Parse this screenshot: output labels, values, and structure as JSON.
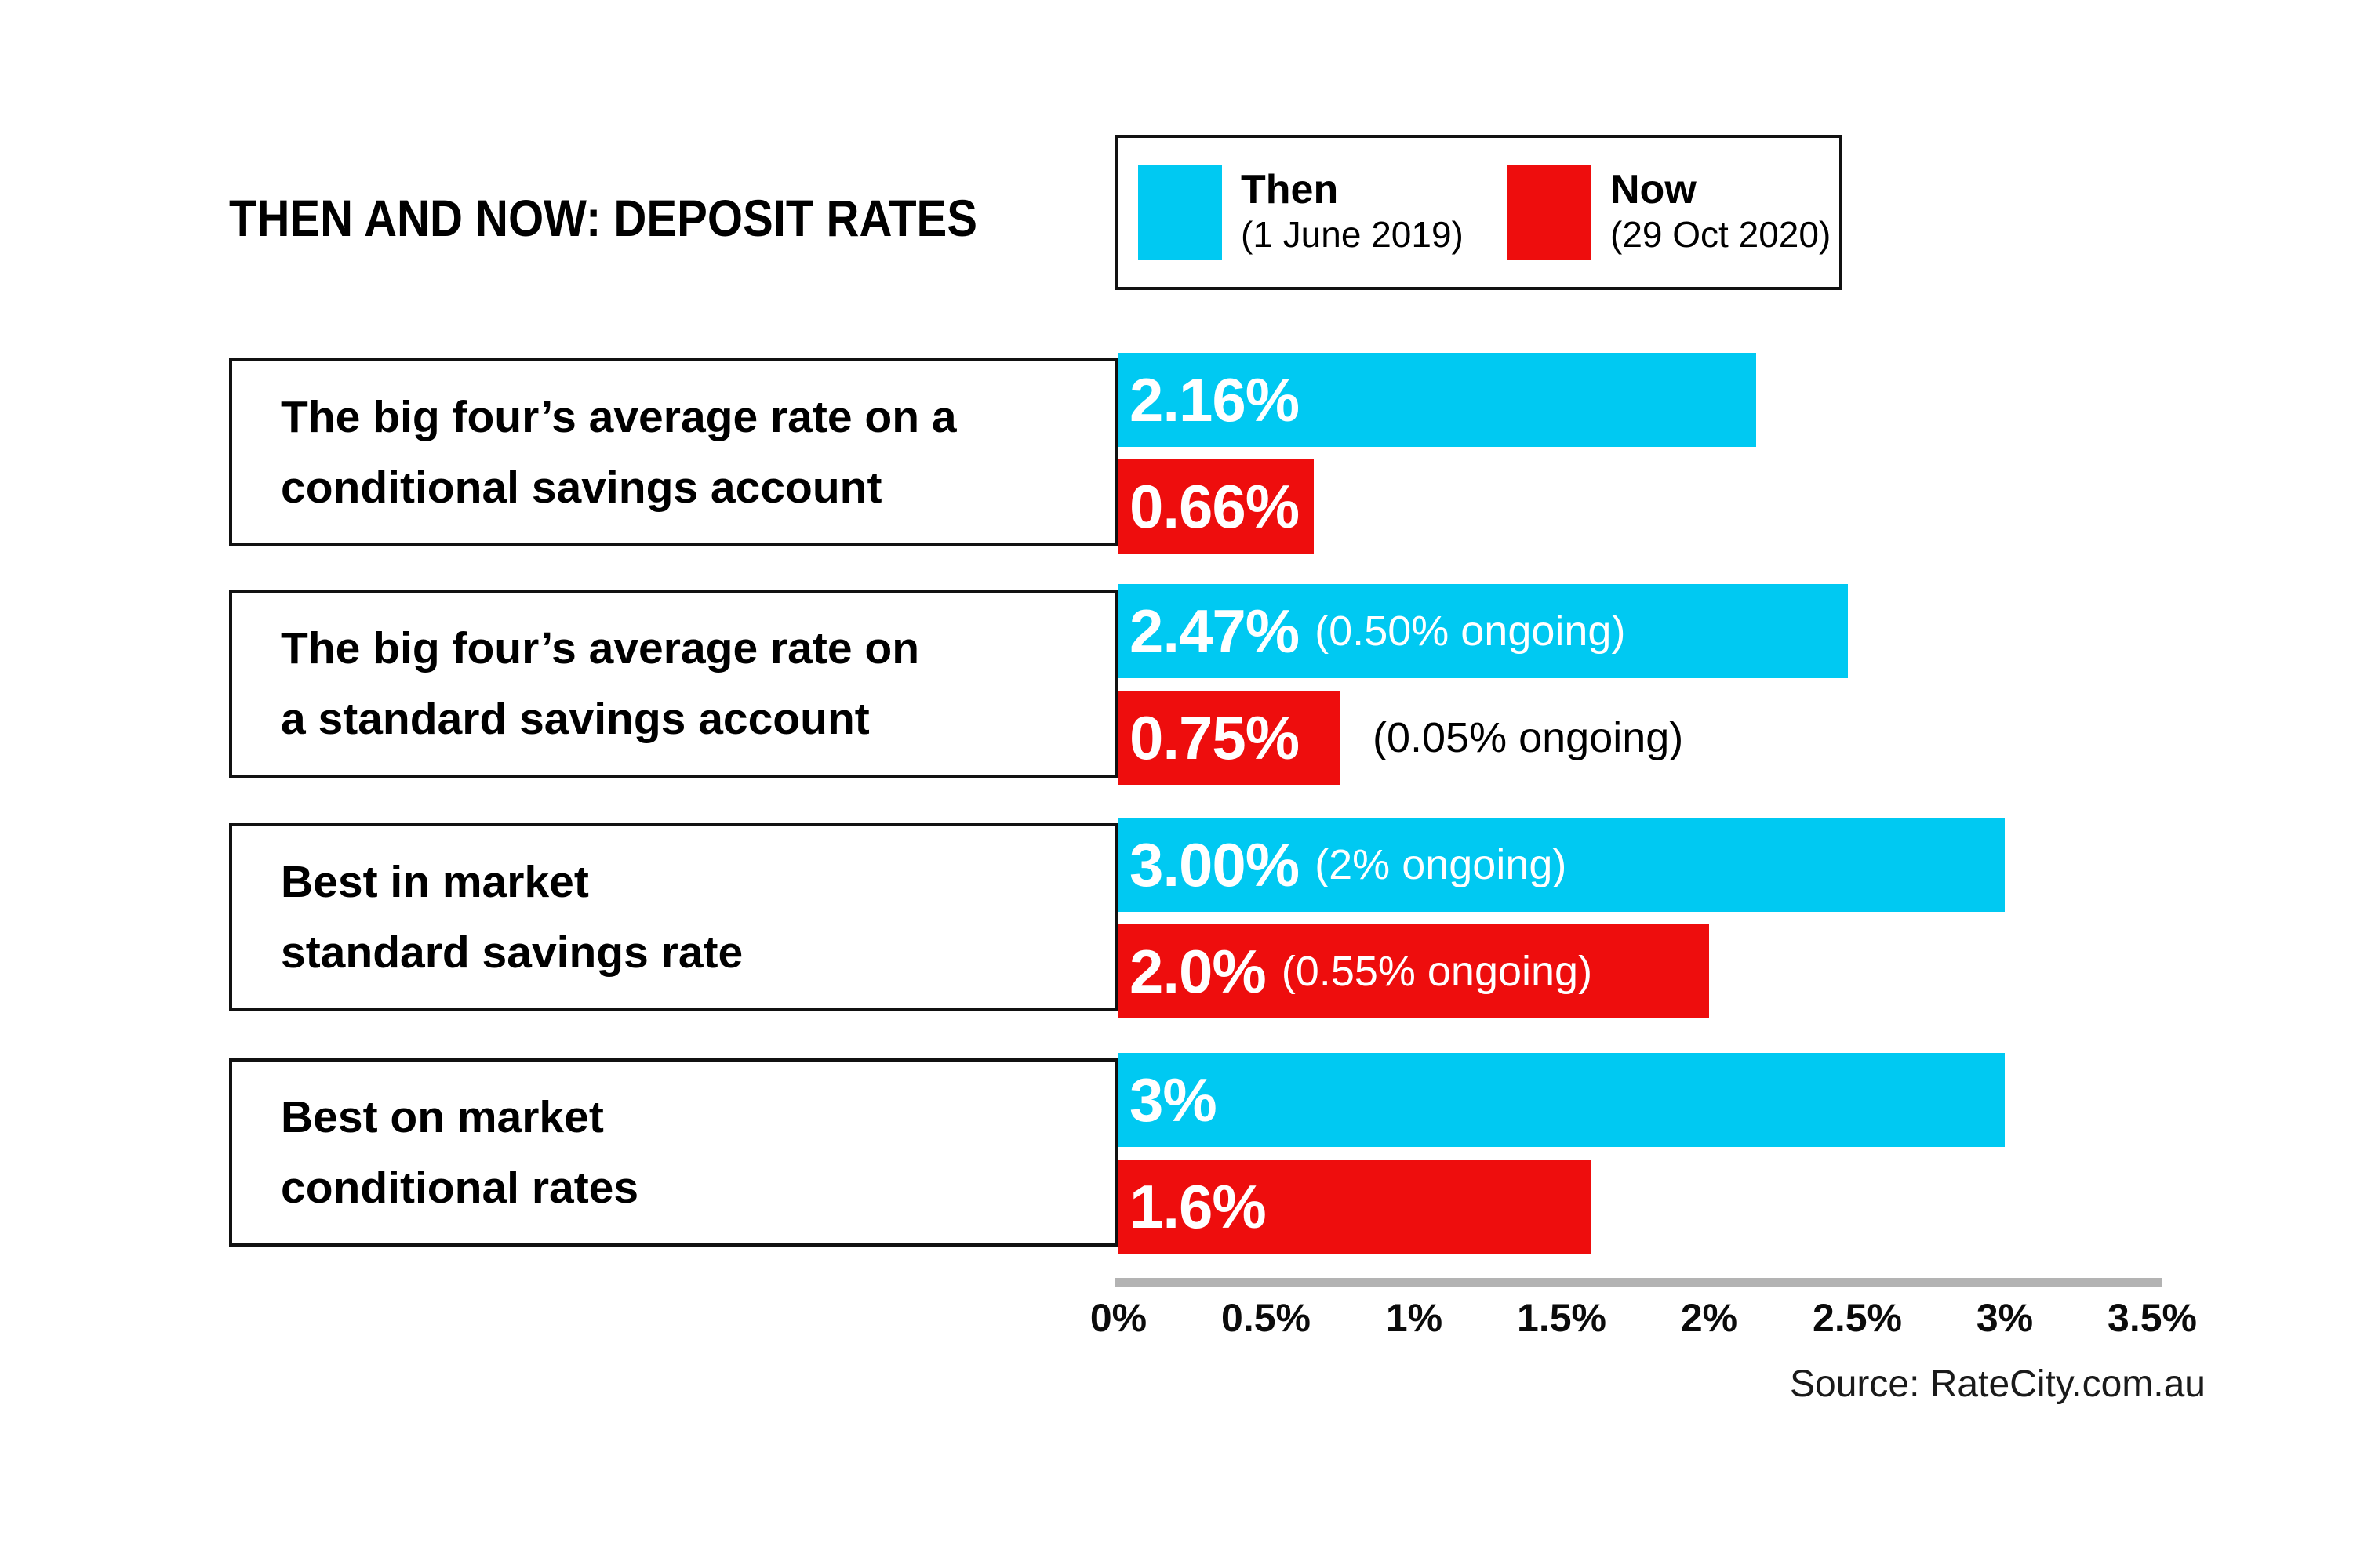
{
  "title": "THEN AND NOW: DEPOSIT RATES",
  "legend": {
    "then": {
      "label": "Then",
      "date": "(1 June 2019)",
      "color": "#00c9f2"
    },
    "now": {
      "label": "Now",
      "date": "(29 Oct 2020)",
      "color": "#ee0d0d"
    }
  },
  "rows": [
    {
      "label_line1": "The big four’s average rate on a",
      "label_line2": "conditional savings account",
      "then": {
        "value": 2.16,
        "value_label": "2.16%",
        "ongoing_label": "",
        "ongoing_outside": false
      },
      "now": {
        "value": 0.66,
        "value_label": "0.66%",
        "ongoing_label": "",
        "ongoing_outside": false
      }
    },
    {
      "label_line1": "The big four’s average rate on",
      "label_line2": "a standard savings account",
      "then": {
        "value": 2.47,
        "value_label": "2.47%",
        "ongoing_label": "(0.50% ongoing)",
        "ongoing_outside": false
      },
      "now": {
        "value": 0.75,
        "value_label": "0.75%",
        "ongoing_label": "(0.05% ongoing)",
        "ongoing_outside": true
      }
    },
    {
      "label_line1": "Best in market",
      "label_line2": "standard savings rate",
      "then": {
        "value": 3.0,
        "value_label": "3.00%",
        "ongoing_label": "(2% ongoing)",
        "ongoing_outside": false
      },
      "now": {
        "value": 2.0,
        "value_label": "2.0%",
        "ongoing_label": "(0.55% ongoing)",
        "ongoing_outside": false
      }
    },
    {
      "label_line1": "Best on market",
      "label_line2": "conditional rates",
      "then": {
        "value": 3.0,
        "value_label": "3%",
        "ongoing_label": "",
        "ongoing_outside": false
      },
      "now": {
        "value": 1.6,
        "value_label": "1.6%",
        "ongoing_label": "",
        "ongoing_outside": false
      }
    }
  ],
  "axis": {
    "ticks": [
      "0%",
      "0.5%",
      "1%",
      "1.5%",
      "2%",
      "2.5%",
      "3%",
      "3.5%"
    ],
    "min": 0,
    "max": 3.5
  },
  "source": "Source: RateCity.com.au",
  "chart_data": {
    "type": "bar",
    "orientation": "horizontal",
    "title": "THEN AND NOW: DEPOSIT RATES",
    "categories": [
      "The big four’s average rate on a conditional savings account",
      "The big four’s average rate on a standard savings account",
      "Best in market standard savings rate",
      "Best on market conditional rates"
    ],
    "series": [
      {
        "name": "Then",
        "subtitle": "(1 June 2019)",
        "color": "#00c9f2",
        "values": [
          2.16,
          2.47,
          3.0,
          3.0
        ],
        "data_labels": [
          "2.16%",
          "2.47% (0.50% ongoing)",
          "3.00% (2% ongoing)",
          "3%"
        ]
      },
      {
        "name": "Now",
        "subtitle": "(29 Oct 2020)",
        "color": "#ee0d0d",
        "values": [
          0.66,
          0.75,
          2.0,
          1.6
        ],
        "data_labels": [
          "0.66%",
          "0.75% (0.05% ongoing)",
          "2.0% (0.55% ongoing)",
          "1.6%"
        ]
      }
    ],
    "xlabel": "",
    "ylabel": "",
    "x_axis": {
      "tick_labels": [
        "0%",
        "0.5%",
        "1%",
        "1.5%",
        "2%",
        "2.5%",
        "3%",
        "3.5%"
      ],
      "min": 0,
      "max": 3.5
    },
    "grid": false,
    "legend_position": "top-right",
    "source": "Source: RateCity.com.au"
  }
}
